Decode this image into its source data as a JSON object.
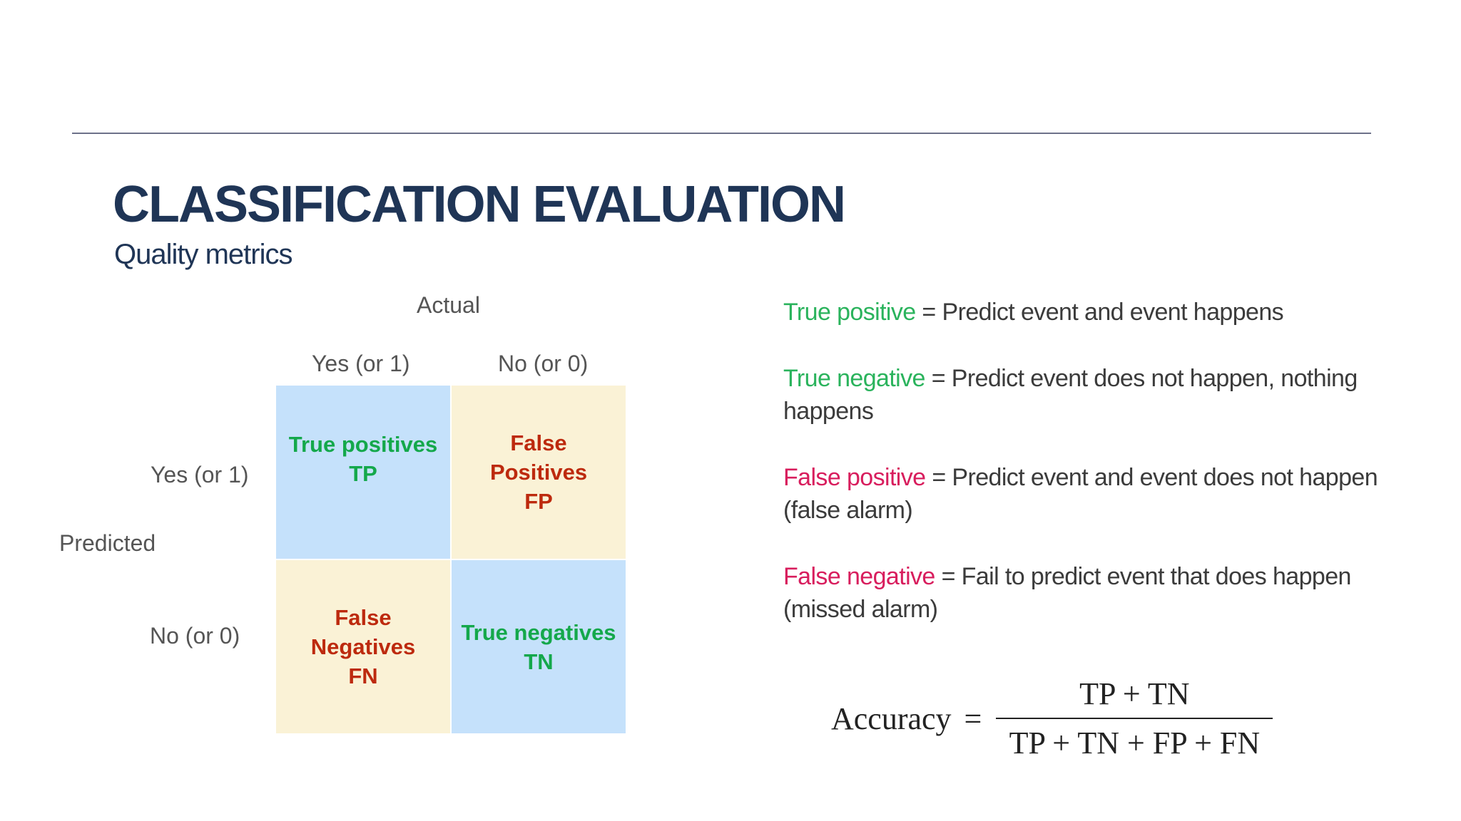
{
  "slide": {
    "title": "CLASSIFICATION EVALUATION",
    "subtitle": "Quality metrics"
  },
  "matrix": {
    "actual_label": "Actual",
    "predicted_label": "Predicted",
    "columns": [
      "Yes (or 1)",
      "No (or 0)"
    ],
    "rows": [
      "Yes (or 1)",
      "No (or 0)"
    ],
    "cells": {
      "tp": {
        "line1": "True positives",
        "line2": "TP"
      },
      "fp": {
        "line1": "False",
        "line2": "Positives",
        "line3": "FP"
      },
      "fn": {
        "line1": "False",
        "line2": "Negatives",
        "line3": "FN"
      },
      "tn": {
        "line1": "True negatives",
        "line2": "TN"
      }
    },
    "colors": {
      "true_cell_bg": "#c5e1fb",
      "false_cell_bg": "#faf2d6",
      "true_text": "#14a84b",
      "false_text": "#bd2a0e"
    }
  },
  "definitions": [
    {
      "term": "True positive",
      "text": " = Predict event and event happens",
      "color": "#2ab35c"
    },
    {
      "term": "True negative",
      "text": " = Predict event does not happen, nothing happens",
      "color": "#2ab35c"
    },
    {
      "term": "False positive",
      "text": " = Predict event and event does not happen (false alarm)",
      "color": "#d81d5d"
    },
    {
      "term": "False negative",
      "text": " = Fail to predict event that does happen (missed alarm)",
      "color": "#d81d5d"
    }
  ],
  "formula": {
    "lhs": "Accuracy",
    "equals": "=",
    "numerator": "TP + TN",
    "denominator": "TP + TN + FP + FN"
  }
}
